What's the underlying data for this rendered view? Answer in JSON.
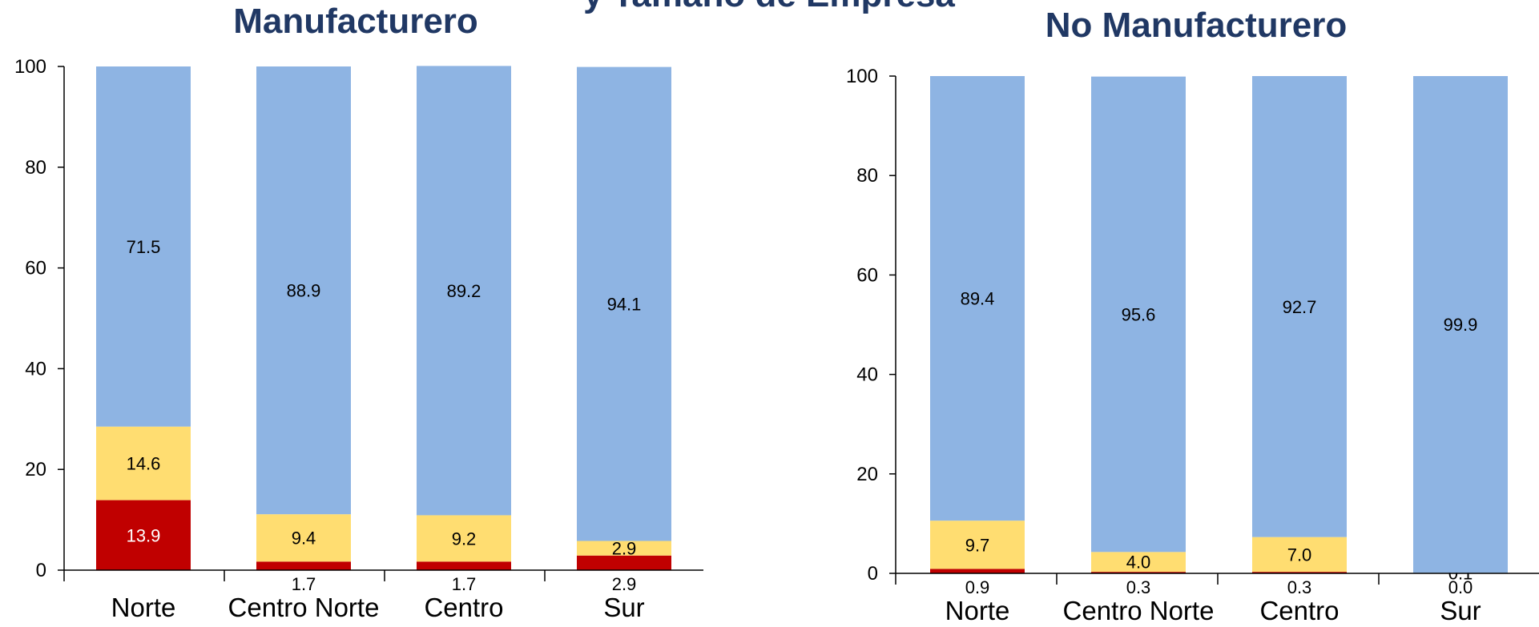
{
  "colors": {
    "title": "#203864",
    "primary_fill": "#8EB4E3",
    "secondary_fill": "#FFDD71",
    "tertiary_fill": "#C00000",
    "axis": "#000000"
  },
  "header_fragment": "y Tamaño de Empresa",
  "chart_data": [
    {
      "type": "bar",
      "stacked": true,
      "title": "Manufacturero",
      "categories": [
        "Norte",
        "Centro Norte",
        "Centro",
        "Sur"
      ],
      "ylim": [
        0,
        100
      ],
      "yticks": [
        0,
        20,
        40,
        60,
        80,
        100
      ],
      "grid": false,
      "legend": "none",
      "series": [
        {
          "values": [
            13.9,
            1.7,
            1.7,
            2.9
          ],
          "color_key": "tertiary_fill",
          "labels": [
            "13.9",
            "1.7",
            "1.7",
            "2.9"
          ]
        },
        {
          "values": [
            14.6,
            9.4,
            9.2,
            2.9
          ],
          "color_key": "secondary_fill",
          "labels": [
            "14.6",
            "9.4",
            "9.2",
            "2.9"
          ]
        },
        {
          "values": [
            71.5,
            88.9,
            89.2,
            94.1
          ],
          "color_key": "primary_fill",
          "labels": [
            "71.5",
            "88.9",
            "89.2",
            "94.1"
          ]
        }
      ]
    },
    {
      "type": "bar",
      "stacked": true,
      "title": "No Manufacturero",
      "categories": [
        "Norte",
        "Centro Norte",
        "Centro",
        "Sur"
      ],
      "ylim": [
        0,
        100
      ],
      "yticks": [
        0,
        20,
        40,
        60,
        80,
        100
      ],
      "grid": false,
      "legend": "none",
      "series": [
        {
          "values": [
            0.9,
            0.3,
            0.3,
            0.0
          ],
          "color_key": "tertiary_fill",
          "labels": [
            "0.9",
            "0.3",
            "0.3",
            "0.0"
          ]
        },
        {
          "values": [
            9.7,
            4.0,
            7.0,
            0.1
          ],
          "color_key": "secondary_fill",
          "labels": [
            "9.7",
            "4.0",
            "7.0",
            "0.1"
          ]
        },
        {
          "values": [
            89.4,
            95.6,
            92.7,
            99.9
          ],
          "color_key": "primary_fill",
          "labels": [
            "89.4",
            "95.6",
            "92.7",
            "99.9"
          ]
        }
      ]
    }
  ]
}
